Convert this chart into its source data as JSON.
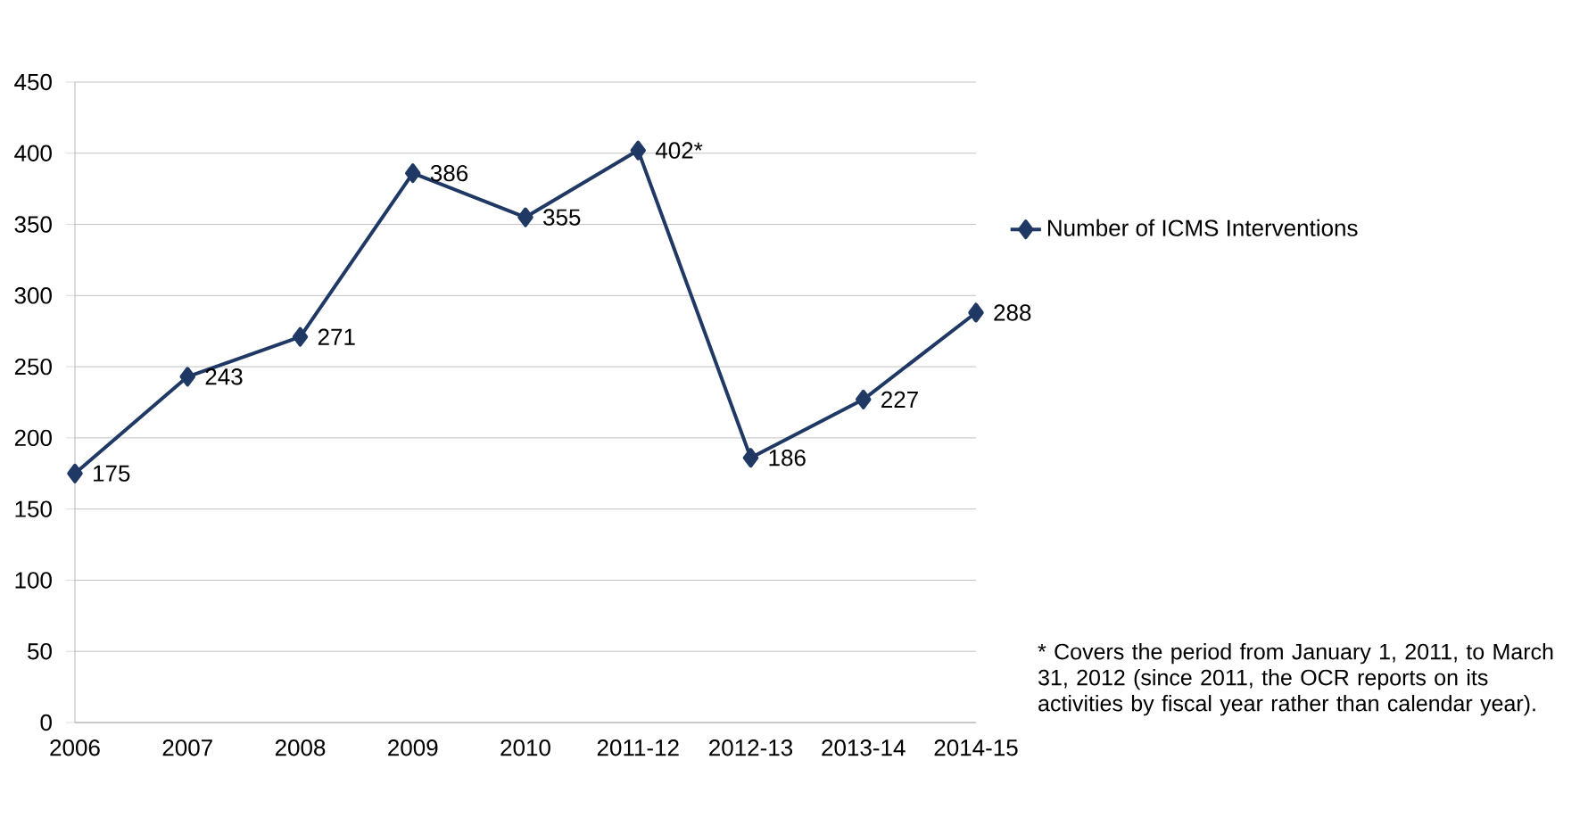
{
  "chart_data": {
    "type": "line",
    "categories": [
      "2006",
      "2007",
      "2008",
      "2009",
      "2010",
      "2011-12",
      "2012-13",
      "2013-14",
      "2014-15"
    ],
    "series": [
      {
        "name": "Number of ICMS Interventions",
        "color": "#1f3864",
        "values": [
          175,
          243,
          271,
          386,
          355,
          402,
          186,
          227,
          288
        ],
        "value_labels": [
          "175",
          "243",
          "271",
          "386",
          "355",
          "402*",
          "186",
          "227",
          "288"
        ]
      }
    ],
    "ylim": [
      0,
      450
    ],
    "yticks": [
      0,
      50,
      100,
      150,
      200,
      250,
      300,
      350,
      400,
      450
    ],
    "grid": "y",
    "legend": "right",
    "marker": "diamond",
    "line_style": "solid",
    "annotations": [
      "* Covers the period from January 1, 2011, to March 31, 2012 (since 2011, the OCR reports on its activities by fiscal year rather than calendar year)."
    ]
  }
}
